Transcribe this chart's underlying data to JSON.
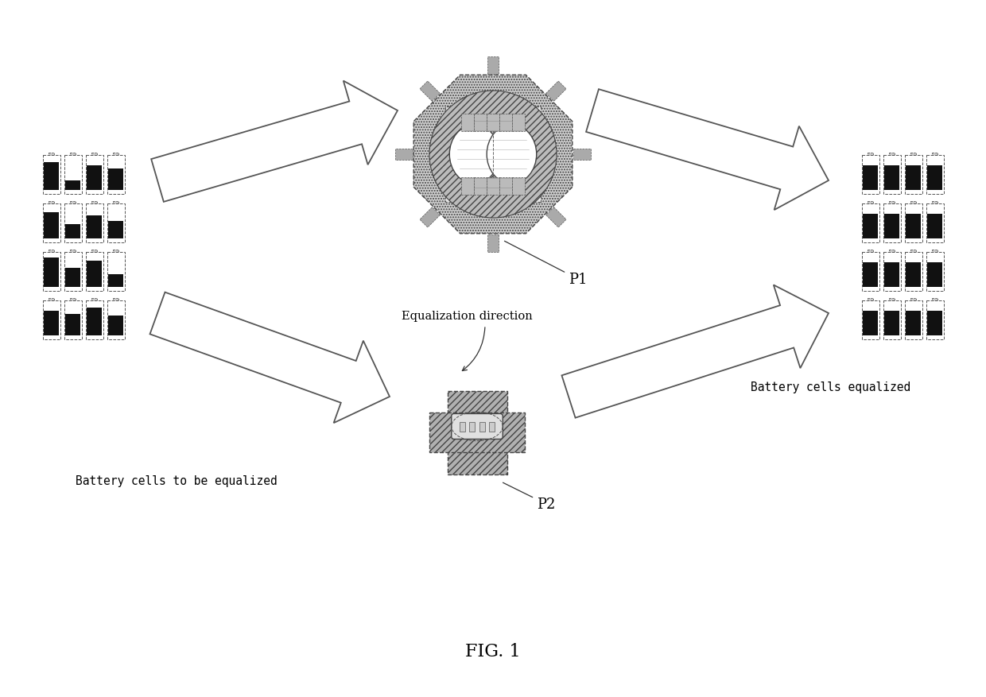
{
  "title": "FIG. 1",
  "label_left": "Battery cells to be equalized",
  "label_right": "Battery cells equalized",
  "label_eq_dir": "Equalization direction",
  "label_p1": "P1",
  "label_p2": "P2",
  "bg_color": "#ffffff",
  "fg_color": "#000000"
}
